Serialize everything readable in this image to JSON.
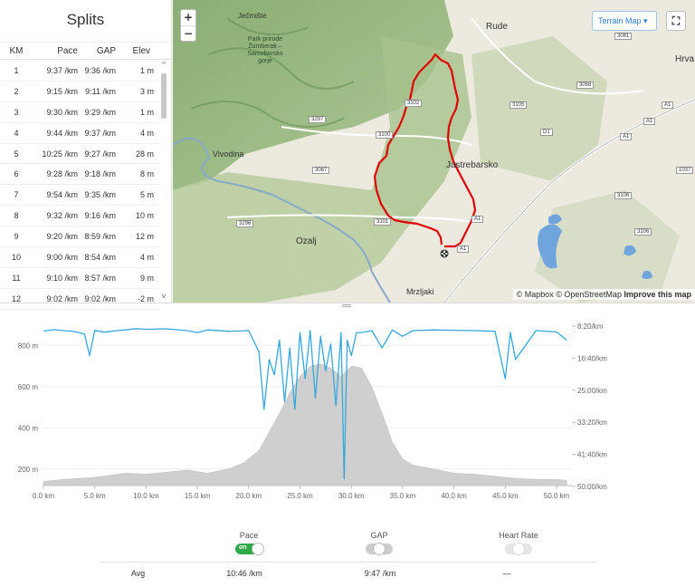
{
  "splits": {
    "title": "Splits",
    "columns": [
      "KM",
      "Pace",
      "GAP",
      "Elev"
    ],
    "rows": [
      {
        "km": "1",
        "pace": "9:37 /km",
        "gap": "9:36 /km",
        "elev": "1 m"
      },
      {
        "km": "2",
        "pace": "9:15 /km",
        "gap": "9:11 /km",
        "elev": "3 m"
      },
      {
        "km": "3",
        "pace": "9:30 /km",
        "gap": "9:29 /km",
        "elev": "1 m"
      },
      {
        "km": "4",
        "pace": "9:44 /km",
        "gap": "9:37 /km",
        "elev": "4 m"
      },
      {
        "km": "5",
        "pace": "10:25 /km",
        "gap": "9:27 /km",
        "elev": "28 m"
      },
      {
        "km": "6",
        "pace": "9:28 /km",
        "gap": "9:18 /km",
        "elev": "8 m"
      },
      {
        "km": "7",
        "pace": "9:54 /km",
        "gap": "9:35 /km",
        "elev": "5 m"
      },
      {
        "km": "8",
        "pace": "9:32 /km",
        "gap": "9:16 /km",
        "elev": "10 m"
      },
      {
        "km": "9",
        "pace": "9:20 /km",
        "gap": "8:59 /km",
        "elev": "12 m"
      },
      {
        "km": "10",
        "pace": "9:00 /km",
        "gap": "8:54 /km",
        "elev": "4 m"
      },
      {
        "km": "11",
        "pace": "9:10 /km",
        "gap": "8:57 /km",
        "elev": "9 m"
      },
      {
        "km": "12",
        "pace": "9:02 /km",
        "gap": "9:02 /km",
        "elev": "-2 m"
      }
    ],
    "scroll_up": "^",
    "scroll_down": "v"
  },
  "map": {
    "zoom_in": "+",
    "zoom_out": "−",
    "layer_button": "Terrain Map ▾",
    "expand_icon": "⛶",
    "attribution": "© Mapbox © OpenStreetMap",
    "improve_link": "Improve this map",
    "labels": {
      "jecmiste": "Ječmište",
      "park": "Park prirode\nŽumberak –\nSamoborsko\ngorje",
      "rude": "Rude",
      "vivodina": "Vivodina",
      "jastrebarsko": "Jastrebarsko",
      "ozalj": "Ozalj",
      "mrzljaki": "Mrzljaki",
      "hrv": "Hrva"
    },
    "roads": [
      "3081",
      "3056",
      "3105",
      "3297",
      "3102",
      "3100",
      "D1",
      "A1",
      "A1",
      "A1",
      "3087",
      "3106",
      "3101",
      "3296",
      "A1",
      "3106",
      "1037",
      "A1"
    ],
    "route_color": "#e00000"
  },
  "chart_data": {
    "type": "area",
    "title": "",
    "xlabel": "",
    "ylabel": "",
    "x_ticks": [
      "0.0 km",
      "5.0 km",
      "10.0 km",
      "15.0 km",
      "20.0 km",
      "25.0 km",
      "30.0 km",
      "35.0 km",
      "40.0 km",
      "45.0 km",
      "50.0 km"
    ],
    "xlim": [
      0,
      51.5
    ],
    "y_left_ticks": [
      "800 m",
      "600 m",
      "400 m",
      "200 m"
    ],
    "y_left_values": [
      800,
      600,
      400,
      200
    ],
    "ylim_left": [
      120,
      920
    ],
    "y_right_ticks": [
      "8:20/km",
      "16:40/km",
      "25:00/km",
      "33:20/km",
      "41:40/km",
      "50:00/km"
    ],
    "series": [
      {
        "name": "Elevation",
        "color": "#c8c8c8",
        "x": [
          0,
          2,
          5,
          8,
          10,
          12,
          14,
          16,
          18,
          19.5,
          21,
          22,
          23,
          24,
          25,
          26,
          27,
          28,
          29,
          30,
          31,
          32,
          33,
          34,
          35,
          36,
          38,
          40,
          42,
          44,
          46,
          48,
          50,
          51
        ],
        "values": [
          140,
          150,
          160,
          180,
          175,
          185,
          195,
          180,
          200,
          230,
          290,
          380,
          470,
          570,
          650,
          700,
          710,
          690,
          650,
          700,
          690,
          600,
          470,
          330,
          250,
          220,
          200,
          180,
          175,
          165,
          155,
          150,
          150,
          145
        ]
      },
      {
        "name": "Pace",
        "color": "#34a8db",
        "x": [
          0,
          1,
          2,
          3,
          4,
          4.5,
          5,
          6,
          7,
          8,
          9,
          10,
          12,
          14,
          15,
          16,
          18,
          20,
          21,
          21.5,
          22,
          22.5,
          23,
          23.5,
          24,
          24.5,
          25,
          25.5,
          26,
          26.5,
          27,
          27.5,
          28,
          28.5,
          29,
          29.3,
          29.6,
          30,
          30.5,
          31,
          32,
          33,
          34,
          35,
          36,
          38,
          40,
          42,
          44,
          45,
          45.5,
          46,
          48,
          50,
          51
        ],
        "values": [
          "9:37/km",
          "9:15/km",
          "9:30/km",
          "9:44/km",
          "10:25/km",
          "16:00/km",
          "9:28/km",
          "9:54/km",
          "9:32/km",
          "9:20/km",
          "9:00/km",
          "9:10/km",
          "9:02/km",
          "9:30/km",
          "10:00/km",
          "9:20/km",
          "9:40/km",
          "9:30/km",
          "15:00/km",
          "30:00/km",
          "17:00/km",
          "21:00/km",
          "12:00/km",
          "28:00/km",
          "14:00/km",
          "30:00/km",
          "10:00/km",
          "22:00/km",
          "9:30/km",
          "27:00/km",
          "11:00/km",
          "20:00/km",
          "13:00/km",
          "29:00/km",
          "10:00/km",
          "48:00/km",
          "12:00/km",
          "16:00/km",
          "10:00/km",
          "10:00/km",
          "9:30/km",
          "14:00/km",
          "9:20/km",
          "11:00/km",
          "9:30/km",
          "9:20/km",
          "9:25/km",
          "9:30/km",
          "9:40/km",
          "22:00/km",
          "10:00/km",
          "17:00/km",
          "9:30/km",
          "9:50/km",
          "12:00/km"
        ]
      }
    ]
  },
  "toggles": {
    "pace": {
      "label": "Pace",
      "state": "on"
    },
    "gap": {
      "label": "GAP",
      "state": "off"
    },
    "heart_rate": {
      "label": "Heart Rate",
      "state": "disabled"
    }
  },
  "summary": {
    "label": "Avg",
    "pace": "10:46 /km",
    "gap": "9:47 /km",
    "heart_rate": "—"
  }
}
